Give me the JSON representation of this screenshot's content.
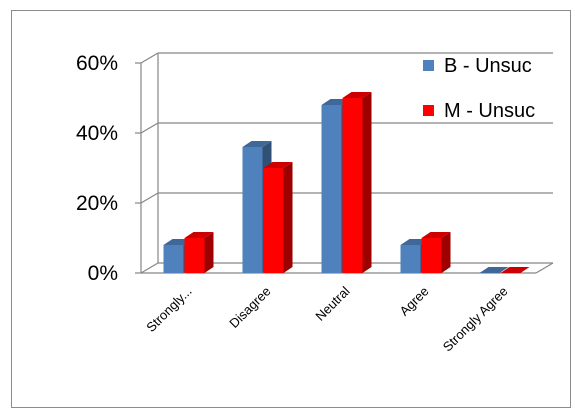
{
  "chart_data": {
    "type": "bar",
    "style": "3d-clustered",
    "categories": [
      "Strongly...",
      "Disagree",
      "Neutral",
      "Agree",
      "Strongly Agree"
    ],
    "series": [
      {
        "name": "B - Unsuc",
        "values": [
          8,
          36,
          48,
          8,
          0
        ],
        "color": "#4f81bd"
      },
      {
        "name": "M - Unsuc",
        "values": [
          10,
          30,
          50,
          10,
          0
        ],
        "color": "#ff0000"
      }
    ],
    "ylim": [
      0,
      60
    ],
    "yticks": [
      "0%",
      "20%",
      "40%",
      "60%"
    ],
    "ytick_values": [
      0,
      20,
      40,
      60
    ],
    "grid": true,
    "legend_position": "top-right"
  }
}
